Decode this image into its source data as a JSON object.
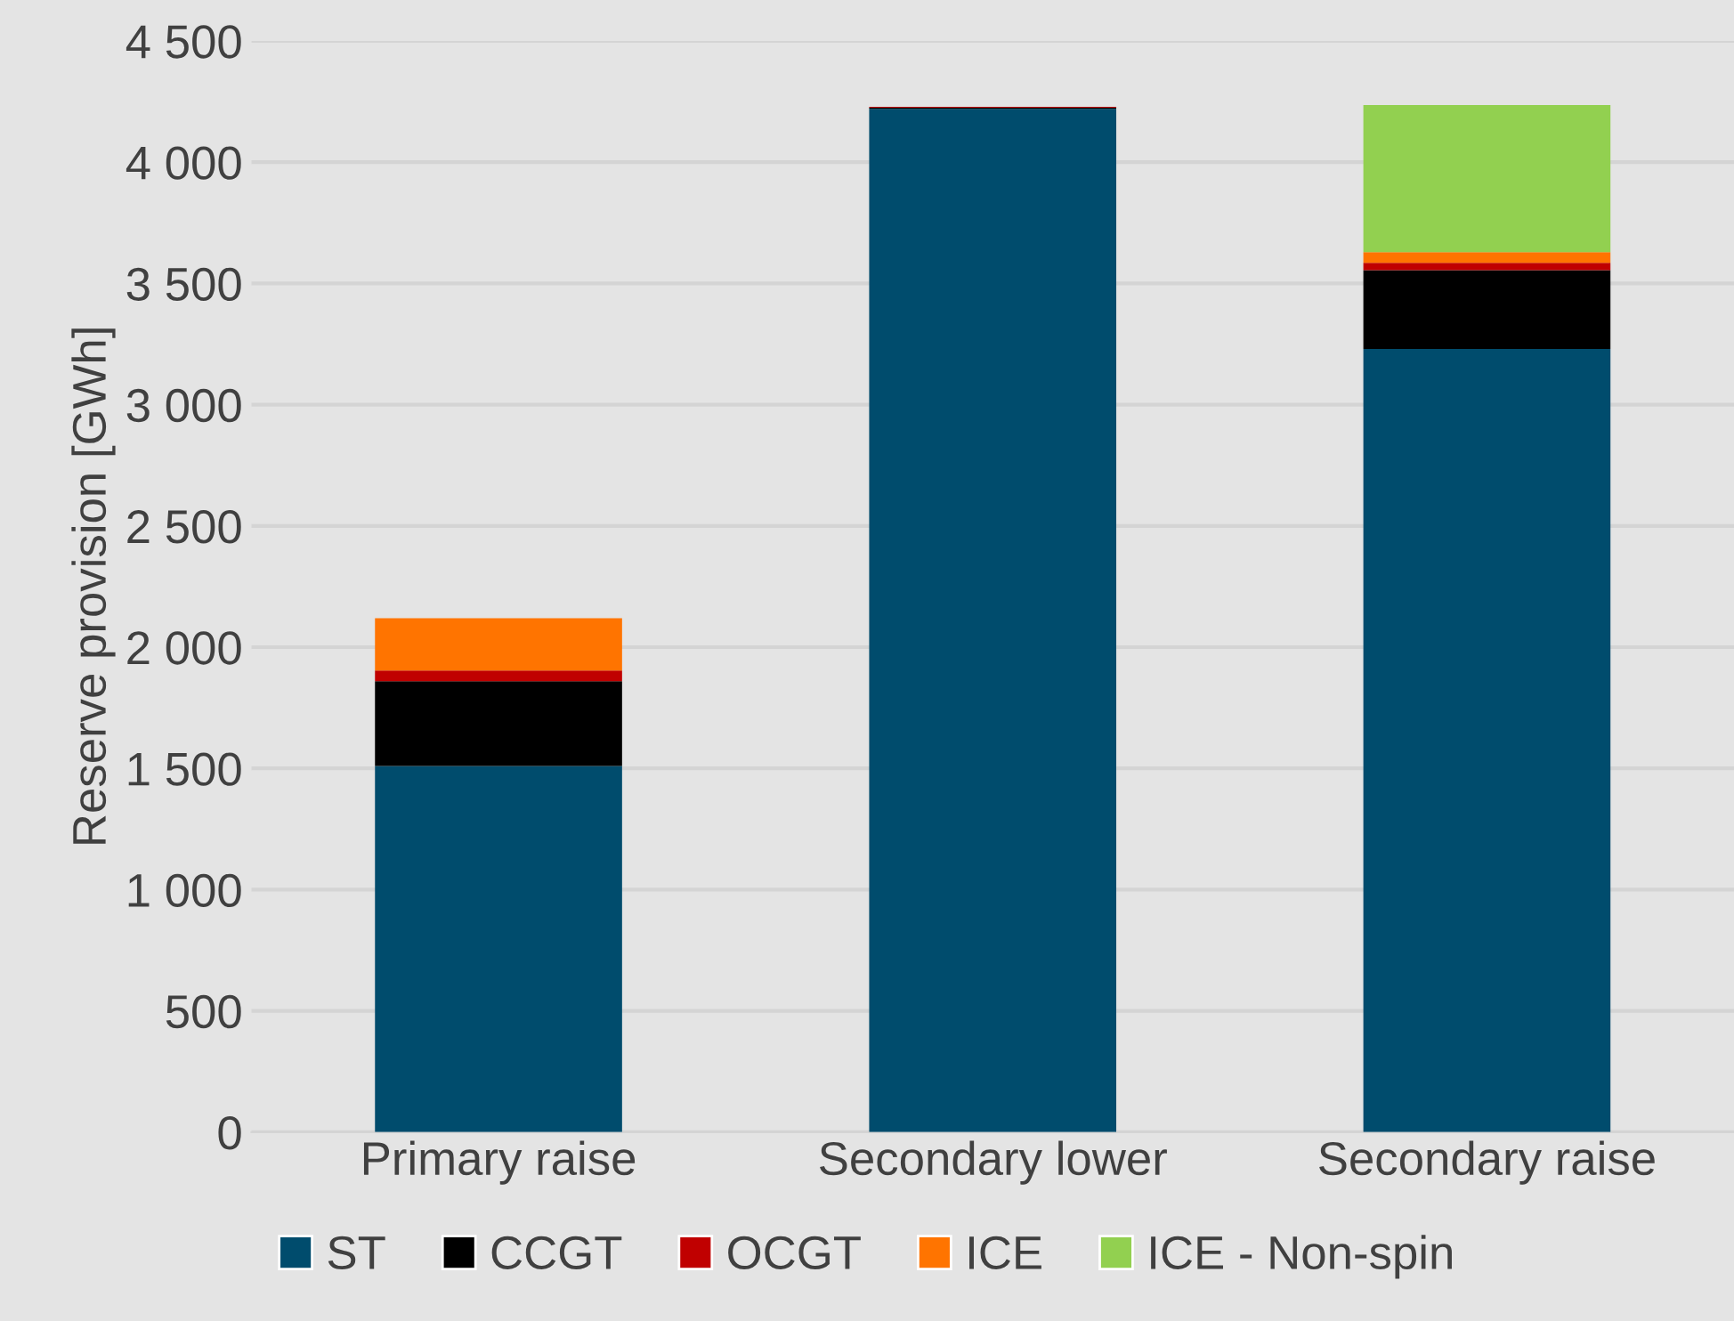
{
  "chart_data": {
    "type": "bar",
    "stacked": true,
    "ylabel": "Reserve provision [GWh]",
    "categories": [
      "Primary raise",
      "Secondary lower",
      "Secondary raise"
    ],
    "series": [
      {
        "name": "ST",
        "color": "#004c6d",
        "values": [
          1510,
          4220,
          3230
        ]
      },
      {
        "name": "CCGT",
        "color": "#000000",
        "values": [
          350,
          5,
          325
        ]
      },
      {
        "name": "OCGT",
        "color": "#c00000",
        "values": [
          44,
          3,
          30
        ]
      },
      {
        "name": "ICE",
        "color": "#ff7400",
        "values": [
          215,
          0,
          44
        ]
      },
      {
        "name": "ICE - Non-spin",
        "color": "#92d050",
        "values": [
          0,
          0,
          607
        ]
      }
    ],
    "ylim": [
      0,
      4500
    ],
    "yticks": [
      0,
      {
        "value": 500,
        "label": "500"
      },
      {
        "value": 1000,
        "label": "1 000"
      },
      {
        "value": 1500,
        "label": "1 500"
      },
      {
        "value": 2000,
        "label": "2 000"
      },
      {
        "value": 2500,
        "label": "2 500"
      },
      {
        "value": 3000,
        "label": "3 000"
      },
      {
        "value": 3500,
        "label": "3 500"
      },
      {
        "value": 4000,
        "label": "4 000"
      },
      {
        "value": 4500,
        "label": "4 500"
      }
    ],
    "grid": "y",
    "legend": "bottom"
  }
}
